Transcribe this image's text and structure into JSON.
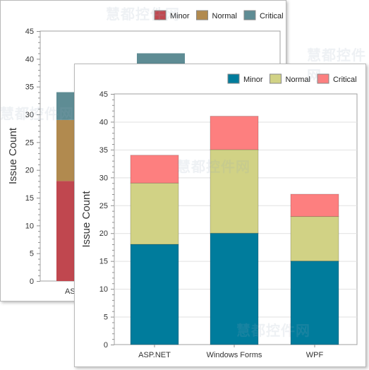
{
  "chart_data": [
    {
      "id": "back",
      "type": "bar",
      "stacked": true,
      "categories": [
        "ASP.NET"
      ],
      "series": [
        {
          "name": "Minor",
          "values": [
            18
          ],
          "color": "#c0474f"
        },
        {
          "name": "Normal",
          "values": [
            11
          ],
          "color": "#b18a4f"
        },
        {
          "name": "Critical",
          "values": [
            5
          ],
          "color": "#5e8c94"
        }
      ],
      "xlabel": "",
      "ylabel": "Issue Count",
      "ylim": [
        0,
        45
      ],
      "yticks": [
        0,
        5,
        10,
        15,
        20,
        25,
        30,
        35,
        40,
        45
      ],
      "legend": "top-right",
      "grid": false,
      "partially_hidden": true
    },
    {
      "id": "front",
      "type": "bar",
      "stacked": true,
      "categories": [
        "ASP.NET",
        "Windows Forms",
        "WPF"
      ],
      "series": [
        {
          "name": "Minor",
          "values": [
            18,
            20,
            15
          ],
          "color": "#007c9c"
        },
        {
          "name": "Normal",
          "values": [
            11,
            15,
            8
          ],
          "color": "#d1d285"
        },
        {
          "name": "Critical",
          "values": [
            5,
            6,
            4
          ],
          "color": "#fd7f7f"
        }
      ],
      "xlabel": "",
      "ylabel": "Issue Count",
      "ylim": [
        0,
        45
      ],
      "yticks": [
        0,
        5,
        10,
        15,
        20,
        25,
        30,
        35,
        40,
        45
      ],
      "legend": "top-right",
      "grid": true
    }
  ],
  "back_extra": {
    "hidden_bar_top": 41,
    "hidden_bar_color": "#5e8c94"
  },
  "watermarks": [
    "慧都控件网",
    "慧都控件网",
    "慧都控件网",
    "慧都控件网",
    "慧都控件网"
  ]
}
